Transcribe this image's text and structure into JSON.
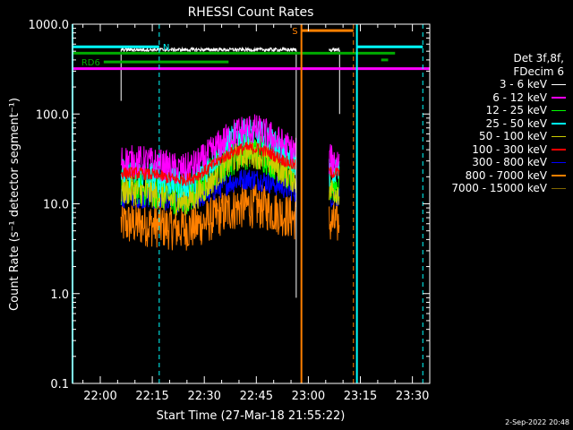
{
  "chart_data": {
    "type": "line",
    "title": "RHESSI Count Rates",
    "xlabel": "Start Time (27-Mar-18 21:55:22)",
    "ylabel": "Count Rate (s⁻¹ detector segment⁻¹)",
    "yscale": "log",
    "ylim": [
      0.1,
      1000
    ],
    "xlim_minutes": [
      -3,
      100
    ],
    "x_tick_labels": [
      "22:00",
      "22:15",
      "22:30",
      "22:45",
      "23:00",
      "23:15",
      "23:30"
    ],
    "x_tick_minutes": [
      5,
      20,
      35,
      50,
      65,
      80,
      95
    ],
    "y_tick_labels": [
      "0.1",
      "1.0",
      "10.0",
      "100.0",
      "1000.0"
    ],
    "y_tick_values": [
      0.1,
      1,
      10,
      100,
      1000
    ],
    "legend_header": [
      "Det 3f,8f,",
      "FDecim 6"
    ],
    "series": [
      {
        "name": "3 - 6 keV",
        "color": "#ffffff",
        "level": 520,
        "amp": 0,
        "noise": 0.02
      },
      {
        "name": "6 - 12 keV",
        "color": "#ff00ff",
        "level": 30,
        "amp": 0.35,
        "noise": 0.13
      },
      {
        "name": "12 - 25 keV",
        "color": "#00ff00",
        "level": 16,
        "amp": 0.4,
        "noise": 0.16
      },
      {
        "name": "25 - 50 keV",
        "color": "#00ffff",
        "level": 22,
        "amp": 0.45,
        "noise": 0.12
      },
      {
        "name": "50 - 100 keV",
        "color": "#cccc00",
        "level": 14,
        "amp": 0.42,
        "noise": 0.12
      },
      {
        "name": "100 - 300 keV",
        "color": "#ff0000",
        "level": 22,
        "amp": 0.28,
        "noise": 0.05
      },
      {
        "name": "300 - 800 keV",
        "color": "#0000ff",
        "level": 12,
        "amp": 0.2,
        "noise": 0.09
      },
      {
        "name": "800 - 7000 keV",
        "color": "#ff8000",
        "level": 6,
        "amp": 0.2,
        "noise": 0.18
      },
      {
        "name": "7000 - 15000 keV",
        "color": "#806600",
        "level": 0,
        "amp": 0,
        "noise": 0
      }
    ],
    "data_segments_minutes": [
      [
        11,
        61.5
      ],
      [
        71,
        74
      ]
    ],
    "saa_bars": [
      {
        "label": "N",
        "color": "#00ffff",
        "x0": -3,
        "x1": 22,
        "y": 560
      },
      {
        "label": "RD6",
        "color": "#00aa00",
        "x0": 6,
        "x1": 42,
        "y": 380
      }
    ],
    "status_lines": [
      {
        "label": "S",
        "color": "#ff8000",
        "x0": 63,
        "x1": 78,
        "y": 850
      }
    ],
    "magenta_reference_level": 320,
    "green_reference_level": 475,
    "vertical_markers": [
      {
        "color": "#00ffff",
        "style": "solid",
        "x": -3
      },
      {
        "color": "#00ffff",
        "style": "dashed",
        "x": 22
      },
      {
        "color": "#ff8000",
        "style": "solid",
        "x": 63
      },
      {
        "color": "#ff8000",
        "style": "dashed",
        "x": 78
      },
      {
        "color": "#00ffff",
        "style": "solid",
        "x": 79
      },
      {
        "color": "#00ffff",
        "style": "dashed",
        "x": 98
      }
    ]
  },
  "timestamp": "2-Sep-2022 20:48"
}
